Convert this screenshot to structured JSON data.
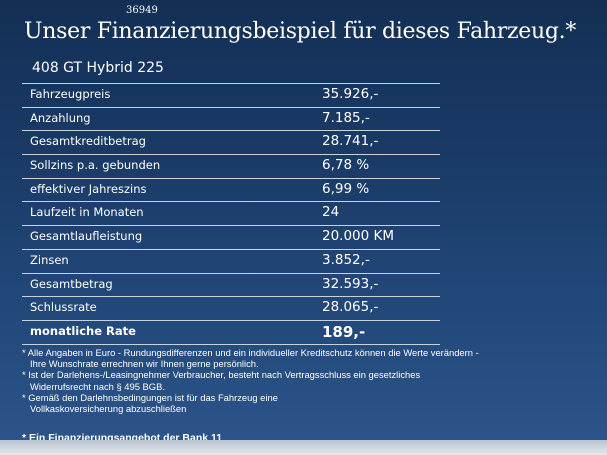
{
  "code": "36949",
  "title": "Unser Finanzierungsbeispiel für dieses Fahrzeug.*",
  "subtitle": "408 GT Hybrid 225",
  "rows": [
    {
      "label": "Fahrzeugpreis",
      "value": "35.926,-"
    },
    {
      "label": "Anzahlung",
      "value": "7.185,-"
    },
    {
      "label": "Gesamtkreditbetrag",
      "value": "28.741,-"
    },
    {
      "label": "Sollzins p.a. gebunden",
      "value": "6,78 %"
    },
    {
      "label": "effektiver Jahreszins",
      "value": "6,99 %"
    },
    {
      "label": "Laufzeit in Monaten",
      "value": "24"
    },
    {
      "label": "Gesamtlaufleistung",
      "value": "20.000 KM"
    },
    {
      "label": "Zinsen",
      "value": "3.852,-"
    },
    {
      "label": "Gesamtbetrag",
      "value": "32.593,-"
    },
    {
      "label": "Schlussrate",
      "value": "28.065,-"
    },
    {
      "label": "monatliche Rate",
      "value": "189,-"
    }
  ],
  "notes": [
    {
      "line1": "* Alle Angaben in Euro - Rundungsdifferenzen und ein individueller Kreditschutz können die Werte verändern -",
      "line2": "Ihre Wunschrate errechnen wir Ihnen gerne persönlich."
    },
    {
      "line1": "* Ist der Darlehens-/Leasingnehmer Verbraucher, besteht nach Vertragsschluss ein gesetzliches",
      "line2": "Widerrufsrecht   nach § 495 BGB."
    },
    {
      "line1": "* Gemäß den Darlehnsbedingungen ist für das Fahrzeug eine",
      "line2": "Vollkaskoversicherung abzuschließen"
    }
  ],
  "footer": "* Ein Finanzierungsangebot der Bank 11"
}
